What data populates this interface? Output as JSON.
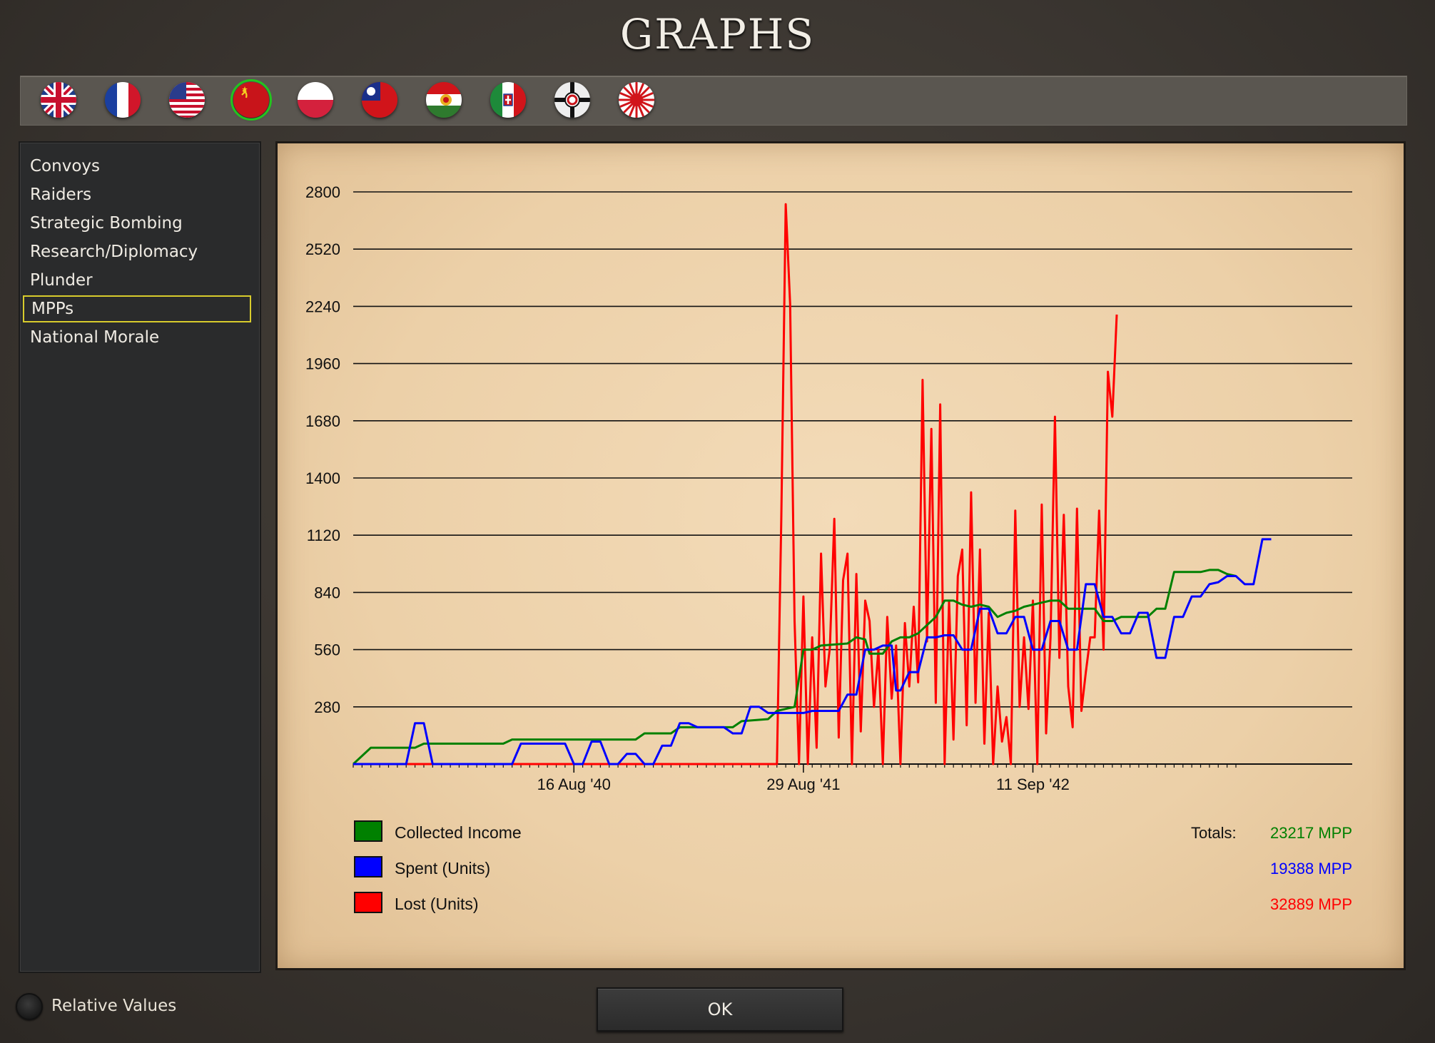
{
  "title": "GRAPHS",
  "flags": [
    {
      "name": "uk-flag-icon",
      "selected": false
    },
    {
      "name": "france-flag-icon",
      "selected": false
    },
    {
      "name": "usa-flag-icon",
      "selected": false
    },
    {
      "name": "ussr-flag-icon",
      "selected": true
    },
    {
      "name": "poland-flag-icon",
      "selected": false
    },
    {
      "name": "china-flag-icon",
      "selected": false
    },
    {
      "name": "hungary-flag-icon",
      "selected": false
    },
    {
      "name": "italy-flag-icon",
      "selected": false
    },
    {
      "name": "germany-flag-icon",
      "selected": false
    },
    {
      "name": "japan-flag-icon",
      "selected": false
    }
  ],
  "sidebar": {
    "items": [
      {
        "label": "Convoys"
      },
      {
        "label": "Raiders"
      },
      {
        "label": "Strategic Bombing"
      },
      {
        "label": "Research/Diplomacy"
      },
      {
        "label": "Plunder"
      },
      {
        "label": "MPPs",
        "active": true
      },
      {
        "label": "National Morale"
      }
    ]
  },
  "options": {
    "relative_values_label": "Relative Values"
  },
  "buttons": {
    "ok_label": "OK"
  },
  "colors": {
    "income": "#008000",
    "spent": "#0000ff",
    "lost": "#ff0000"
  },
  "chart_data": {
    "type": "line",
    "ylim": [
      0,
      2800
    ],
    "y_ticks": [
      280,
      560,
      840,
      1120,
      1400,
      1680,
      1960,
      2240,
      2520,
      2800
    ],
    "x_range": [
      0,
      100
    ],
    "x_ticks": [
      {
        "x": 25,
        "label": "16 Aug '40"
      },
      {
        "x": 51,
        "label": "29 Aug '41"
      },
      {
        "x": 77,
        "label": "11 Sep '42"
      }
    ],
    "totals_label": "Totals:",
    "series": [
      {
        "name": "Collected Income",
        "total": "23217 MPP",
        "points": [
          [
            0,
            0
          ],
          [
            2,
            80
          ],
          [
            7,
            80
          ],
          [
            8,
            100
          ],
          [
            17,
            100
          ],
          [
            18,
            120
          ],
          [
            32,
            120
          ],
          [
            33,
            150
          ],
          [
            36,
            150
          ],
          [
            37,
            180
          ],
          [
            43,
            180
          ],
          [
            44,
            210
          ],
          [
            47,
            220
          ],
          [
            48,
            260
          ],
          [
            49,
            270
          ],
          [
            50,
            280
          ],
          [
            51,
            560
          ],
          [
            52,
            560
          ],
          [
            53,
            580
          ],
          [
            56,
            590
          ],
          [
            57,
            620
          ],
          [
            58,
            610
          ],
          [
            58.5,
            540
          ],
          [
            60,
            540
          ],
          [
            61,
            600
          ],
          [
            62,
            620
          ],
          [
            63,
            620
          ],
          [
            64,
            640
          ],
          [
            65,
            680
          ],
          [
            66,
            720
          ],
          [
            67,
            800
          ],
          [
            68,
            800
          ],
          [
            69,
            780
          ],
          [
            70,
            770
          ],
          [
            71,
            780
          ],
          [
            72,
            770
          ],
          [
            73,
            720
          ],
          [
            74,
            740
          ],
          [
            75,
            750
          ],
          [
            76,
            770
          ],
          [
            77,
            780
          ],
          [
            78,
            790
          ],
          [
            79,
            800
          ],
          [
            80,
            800
          ],
          [
            81,
            760
          ],
          [
            83,
            760
          ],
          [
            84,
            760
          ],
          [
            85,
            700
          ],
          [
            86,
            700
          ],
          [
            87,
            720
          ],
          [
            88,
            720
          ],
          [
            89,
            720
          ],
          [
            90,
            720
          ],
          [
            91,
            760
          ],
          [
            92,
            760
          ],
          [
            93,
            940
          ],
          [
            95,
            940
          ],
          [
            96,
            940
          ],
          [
            97,
            950
          ],
          [
            98,
            950
          ],
          [
            99,
            930
          ],
          [
            100,
            920
          ]
        ]
      },
      {
        "name": "Spent (Units)",
        "total": "19388 MPP",
        "points": [
          [
            0,
            0
          ],
          [
            6,
            0
          ],
          [
            7,
            200
          ],
          [
            8,
            200
          ],
          [
            9,
            0
          ],
          [
            18,
            0
          ],
          [
            19,
            100
          ],
          [
            24,
            100
          ],
          [
            25,
            0
          ],
          [
            26,
            0
          ],
          [
            27,
            110
          ],
          [
            28,
            110
          ],
          [
            29,
            0
          ],
          [
            30,
            0
          ],
          [
            31,
            50
          ],
          [
            32,
            50
          ],
          [
            33,
            0
          ],
          [
            34,
            0
          ],
          [
            35,
            90
          ],
          [
            36,
            90
          ],
          [
            37,
            200
          ],
          [
            38,
            200
          ],
          [
            39,
            180
          ],
          [
            42,
            180
          ],
          [
            43,
            150
          ],
          [
            44,
            150
          ],
          [
            45,
            280
          ],
          [
            46,
            280
          ],
          [
            47,
            250
          ],
          [
            51,
            250
          ],
          [
            52,
            260
          ],
          [
            55,
            260
          ],
          [
            56,
            340
          ],
          [
            57,
            340
          ],
          [
            58,
            560
          ],
          [
            59,
            560
          ],
          [
            60,
            580
          ],
          [
            61,
            580
          ],
          [
            61.5,
            360
          ],
          [
            62,
            360
          ],
          [
            63,
            450
          ],
          [
            64,
            450
          ],
          [
            65,
            620
          ],
          [
            66,
            620
          ],
          [
            67,
            630
          ],
          [
            68,
            630
          ],
          [
            69,
            560
          ],
          [
            70,
            560
          ],
          [
            71,
            760
          ],
          [
            72,
            760
          ],
          [
            73,
            640
          ],
          [
            74,
            640
          ],
          [
            75,
            720
          ],
          [
            76,
            720
          ],
          [
            77,
            560
          ],
          [
            78,
            560
          ],
          [
            79,
            700
          ],
          [
            80,
            700
          ],
          [
            81,
            560
          ],
          [
            82,
            560
          ],
          [
            83,
            880
          ],
          [
            84,
            880
          ],
          [
            85,
            720
          ],
          [
            86,
            720
          ],
          [
            87,
            640
          ],
          [
            88,
            640
          ],
          [
            89,
            740
          ],
          [
            90,
            740
          ],
          [
            91,
            520
          ],
          [
            92,
            520
          ],
          [
            93,
            720
          ],
          [
            94,
            720
          ],
          [
            95,
            820
          ],
          [
            96,
            820
          ],
          [
            97,
            880
          ],
          [
            98,
            890
          ],
          [
            99,
            920
          ],
          [
            100,
            920
          ],
          [
            101,
            880
          ],
          [
            102,
            880
          ],
          [
            103,
            1100
          ],
          [
            104,
            1100
          ]
        ]
      },
      {
        "name": "Lost (Units)",
        "total": "32889 MPP",
        "points": [
          [
            0,
            0
          ],
          [
            8,
            0
          ],
          [
            40,
            0
          ],
          [
            47,
            0
          ],
          [
            48,
            0
          ],
          [
            48.5,
            1200
          ],
          [
            49,
            2740
          ],
          [
            49.5,
            2250
          ],
          [
            50,
            700
          ],
          [
            50.5,
            0
          ],
          [
            51,
            820
          ],
          [
            51.5,
            0
          ],
          [
            52,
            620
          ],
          [
            52.5,
            80
          ],
          [
            53,
            1030
          ],
          [
            53.5,
            380
          ],
          [
            54,
            570
          ],
          [
            54.5,
            1200
          ],
          [
            55,
            130
          ],
          [
            55.5,
            900
          ],
          [
            56,
            1030
          ],
          [
            56.5,
            0
          ],
          [
            57,
            930
          ],
          [
            57.5,
            160
          ],
          [
            58,
            800
          ],
          [
            58.5,
            700
          ],
          [
            59,
            280
          ],
          [
            59.5,
            560
          ],
          [
            60,
            0
          ],
          [
            60.5,
            720
          ],
          [
            61,
            320
          ],
          [
            61.5,
            580
          ],
          [
            62,
            0
          ],
          [
            62.5,
            690
          ],
          [
            63,
            380
          ],
          [
            63.5,
            770
          ],
          [
            64,
            400
          ],
          [
            64.5,
            1880
          ],
          [
            65,
            600
          ],
          [
            65.5,
            1640
          ],
          [
            66,
            300
          ],
          [
            66.5,
            1760
          ],
          [
            67,
            0
          ],
          [
            67.5,
            800
          ],
          [
            68,
            120
          ],
          [
            68.5,
            920
          ],
          [
            69,
            1050
          ],
          [
            69.5,
            190
          ],
          [
            70,
            1330
          ],
          [
            70.5,
            300
          ],
          [
            71,
            1050
          ],
          [
            71.5,
            100
          ],
          [
            72,
            740
          ],
          [
            72.5,
            0
          ],
          [
            73,
            380
          ],
          [
            73.5,
            110
          ],
          [
            74,
            230
          ],
          [
            74.5,
            0
          ],
          [
            75,
            1240
          ],
          [
            75.5,
            280
          ],
          [
            76,
            620
          ],
          [
            76.5,
            270
          ],
          [
            77,
            800
          ],
          [
            77.5,
            0
          ],
          [
            78,
            1270
          ],
          [
            78.5,
            150
          ],
          [
            79,
            620
          ],
          [
            79.5,
            1700
          ],
          [
            80,
            520
          ],
          [
            80.5,
            1220
          ],
          [
            81,
            380
          ],
          [
            81.5,
            180
          ],
          [
            82,
            1250
          ],
          [
            82.5,
            260
          ],
          [
            83,
            450
          ],
          [
            83.5,
            620
          ],
          [
            84,
            620
          ],
          [
            84.5,
            1240
          ],
          [
            85,
            560
          ],
          [
            85.5,
            1920
          ],
          [
            86,
            1700
          ],
          [
            86.5,
            2200
          ]
        ]
      }
    ]
  }
}
